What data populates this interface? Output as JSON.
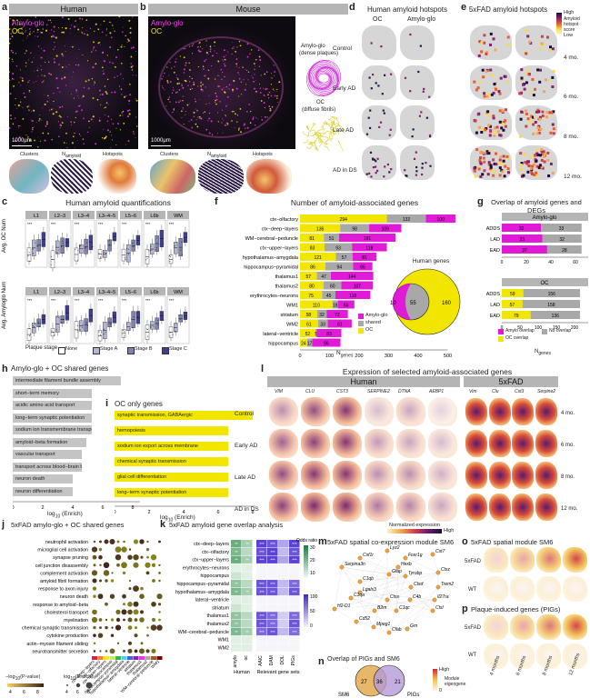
{
  "panel_letters": {
    "a": "a",
    "b": "b",
    "c": "c",
    "d": "d",
    "e": "e",
    "f": "f",
    "g": "g",
    "h": "h",
    "i": "i",
    "j": "j",
    "k": "k",
    "l": "l",
    "m": "m",
    "n": "n",
    "o": "o",
    "p": "p"
  },
  "a": {
    "title": "Human",
    "stain1": "Amylo-glo",
    "stain2": "OC",
    "scale": "1000μm",
    "sub": [
      "Clusters",
      "N",
      "amyloid",
      "Hotspots"
    ]
  },
  "b": {
    "title": "Mouse",
    "stain1": "Amylo-glo",
    "stain2": "OC",
    "scale": "1000μm",
    "sub": [
      "Clusters",
      "N",
      "amyloid",
      "Hotspots"
    ],
    "legend1": "Amylo-glo",
    "legend1b": "(dense plaques)",
    "legend2": "OC",
    "legend2b": "(diffuse fibrils)"
  },
  "c": {
    "title": "Human amyloid quantifications",
    "ylab1": "Avg. OC Num",
    "ylab2": "Avg. Amyloglo Num",
    "layers": [
      "L1",
      "L2–3",
      "L3–4",
      "L3–4–5",
      "L5–6",
      "L6b",
      "WM"
    ],
    "xlab": "Plaque stage",
    "legend": [
      "None",
      "Stage A",
      "Stage B",
      "Stage C"
    ],
    "colors": [
      "#ffffff",
      "#b3b6d4",
      "#7d82b8",
      "#3f3f8a"
    ]
  },
  "d": {
    "title": "Human amyloid hotspots",
    "cols": [
      "OC",
      "Amylo-glo"
    ],
    "rows": [
      "Control",
      "Early AD",
      "Late AD",
      "AD in DS"
    ]
  },
  "e": {
    "title": "5xFAD amyloid hotspots",
    "rows": [
      "4 mo.",
      "6 mo.",
      "8 mo.",
      "12 mo."
    ],
    "legend_high": "High",
    "legend_low": "Low",
    "legend_label": "Amyloid hotspot score"
  },
  "f": {
    "title": "Number of amyloid-associated genes",
    "xlabel": "N",
    "xlabel_sub": "genes",
    "legend": [
      "Amylo-glo",
      "shared",
      "OC"
    ],
    "venn_title": "Human genes",
    "venn": {
      "left": "10",
      "mid": "55",
      "right": "160"
    }
  },
  "g": {
    "title": "Overlap of amyloid genes and DEGs",
    "sec1": "Amylo-glo",
    "sec2": "OC",
    "legend": [
      "Amylo overlap",
      "No overlap",
      "OC overlap"
    ],
    "xlabel": "N",
    "xlabel_sub": "genes"
  },
  "h": {
    "title": "Amylo-glo + OC shared genes",
    "xlabel": "log",
    "xlabel_sub": "10",
    "xlabel_end": " (Enrich)",
    "ticks": [
      "0",
      "2",
      "4",
      "6",
      "8"
    ]
  },
  "i": {
    "title": "OC only genes",
    "xlabel": "log",
    "xlabel_sub": "10",
    "xlabel_end": " (Enrich)",
    "ticks": [
      "0",
      "2",
      "4",
      "6",
      "8"
    ]
  },
  "j": {
    "title": "5xFAD amylo-glo + OC shared genes",
    "legend_p": "−log",
    "legend_p_end": "(P-value)",
    "legend_p_ticks": [
      "4",
      "6",
      "8"
    ],
    "legend_e": "log",
    "legend_e_end": "(Enrich)",
    "legend_e_ticks": [
      "4",
      "6",
      "8"
    ]
  },
  "k": {
    "title": "5xFAD amyloid gene overlap analysis",
    "xgroup1": "Human",
    "xgroup2": "Relevant gene sets",
    "xcols": [
      "amylo",
      "oc",
      "AAIC",
      "DAM",
      "DOL",
      "PIGs"
    ],
    "legend1": "Odds ratio",
    "legend1_ticks": [
      "30",
      "20",
      "10"
    ],
    "legend2_ticks": [
      "100",
      "50",
      "0"
    ]
  },
  "l": {
    "title": "Expression of selected amyloid-associated genes",
    "human": "Human",
    "mouse": "5xFAD",
    "human_genes": [
      "VIM",
      "CLU",
      "CST3",
      "SERPINE2",
      "DTNA",
      "AEBP1"
    ],
    "mouse_genes": [
      "Vim",
      "Clu",
      "Cst3",
      "Serpine2"
    ],
    "rows": [
      "Control",
      "Early AD",
      "Late AD",
      "AD in DS"
    ],
    "mouse_rows": [
      "4 mo.",
      "6 mo.",
      "8 mo.",
      "12 mo."
    ],
    "legend": "Normalized expression",
    "legend_high": "High"
  },
  "m": {
    "title": "5xFAD spatial co-expression module SM6",
    "genes": [
      "Lyz2",
      "Csf1r",
      "Fcer1g",
      "Cst7",
      "Serpina3n",
      "Hexb",
      "Gfap",
      "Ctsz",
      "Tyrobp",
      "C1qb",
      "Lgals3",
      "Trem2",
      "Ctsd",
      "C1qa",
      "Ctss",
      "C4b",
      "Il27ra",
      "H2-D1",
      "B2m",
      "C1qc",
      "Ctsl",
      "Cd52",
      "Mpeg1",
      "Cfab",
      "Grn"
    ]
  },
  "n": {
    "title": "Overlap of PIGs and SM6",
    "left": "27",
    "mid": "36",
    "right": "21",
    "label_l": "SM6",
    "label_r": "PIGs"
  },
  "o": {
    "title": "5xFAD spatial module SM6",
    "rows": [
      "5xFAD",
      "WT"
    ],
    "legend": "Module eigengene",
    "legend_high": "High",
    "legend_low": "0"
  },
  "p": {
    "title": "Plaque-induced genes (PIGs)",
    "rows": [
      "5xFAD",
      "WT"
    ],
    "cols": [
      "4 months",
      "6 months",
      "8 months",
      "12 months"
    ]
  },
  "colors": {
    "magenta": "#e11ad8",
    "yellow": "#f2e600",
    "grey": "#a8a8a8",
    "green": "#2e8b57",
    "purple": "#5b3fd1"
  }
}
